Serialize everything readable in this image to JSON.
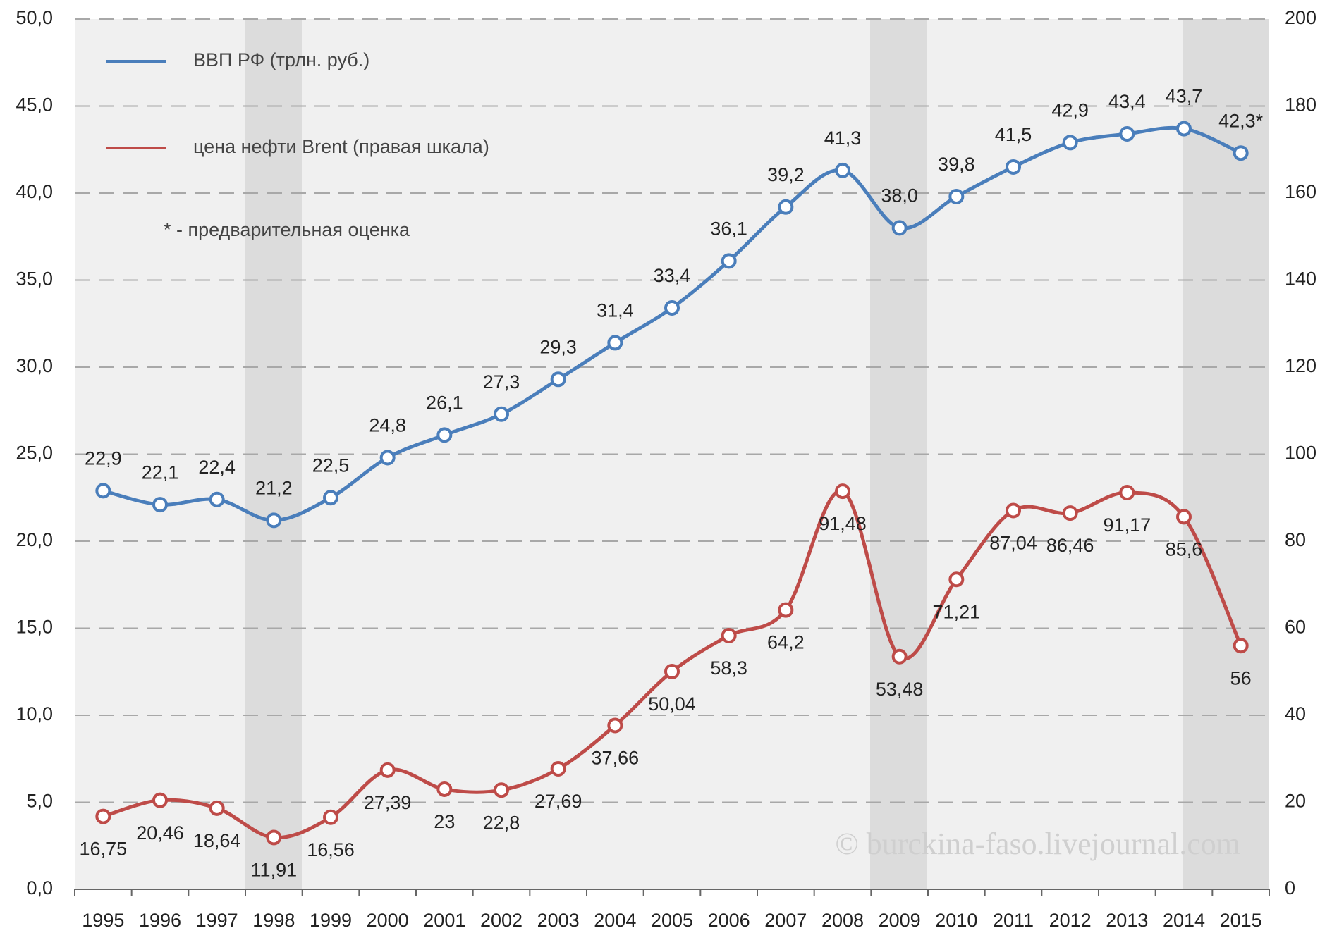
{
  "chart_data": {
    "type": "line",
    "categories": [
      "1995",
      "1996",
      "1997",
      "1998",
      "1999",
      "2000",
      "2001",
      "2002",
      "2003",
      "2004",
      "2005",
      "2006",
      "2007",
      "2008",
      "2009",
      "2010",
      "2011",
      "2012",
      "2013",
      "2014",
      "2015"
    ],
    "series": [
      {
        "name": "ВВП РФ (трлн. руб.)",
        "color": "#4a7ebb",
        "values": [
          22.9,
          22.1,
          22.4,
          21.2,
          22.5,
          24.8,
          26.1,
          27.3,
          29.3,
          31.4,
          33.4,
          36.1,
          39.2,
          41.3,
          38.0,
          39.8,
          41.5,
          42.9,
          43.4,
          43.7,
          42.3
        ],
        "value_labels": [
          "22,9",
          "22,1",
          "22,4",
          "21,2",
          "22,5",
          "24,8",
          "26,1",
          "27,3",
          "29,3",
          "31,4",
          "33,4",
          "36,1",
          "39,2",
          "41,3",
          "38,0",
          "39,8",
          "41,5",
          "42,9",
          "43,4",
          "43,7",
          "42,3*"
        ]
      },
      {
        "name": "цена нефти Brent (правая шкала)",
        "color": "#be4b48",
        "axis": "y2",
        "values": [
          16.75,
          20.46,
          18.64,
          11.91,
          16.56,
          27.39,
          23,
          22.8,
          27.69,
          37.66,
          50.04,
          58.3,
          64.2,
          91.48,
          53.48,
          71.21,
          87.04,
          86.46,
          91.17,
          85.6,
          56
        ],
        "value_labels": [
          "16,75",
          "20,46",
          "18,64",
          "11,91",
          "16,56",
          "27,39",
          "23",
          "22,8",
          "27,69",
          "37,66",
          "50,04",
          "58,3",
          "64,2",
          "91,48",
          "53,48",
          "71,21",
          "87,04",
          "86,46",
          "91,17",
          "85,6",
          "56"
        ]
      }
    ],
    "ylim": [
      0,
      50
    ],
    "yticks": [
      {
        "value": 0,
        "label": "0,0"
      },
      {
        "value": 5,
        "label": "5,0"
      },
      {
        "value": 10,
        "label": "10,0"
      },
      {
        "value": 15,
        "label": "15,0"
      },
      {
        "value": 20,
        "label": "20,0"
      },
      {
        "value": 25,
        "label": "25,0"
      },
      {
        "value": 30,
        "label": "30,0"
      },
      {
        "value": 35,
        "label": "35,0"
      },
      {
        "value": 40,
        "label": "40,0"
      },
      {
        "value": 45,
        "label": "45,0"
      },
      {
        "value": 50,
        "label": "50,0"
      }
    ],
    "y2lim": [
      0,
      200
    ],
    "y2ticks": [
      0,
      20,
      40,
      60,
      80,
      100,
      120,
      140,
      160,
      180,
      200
    ],
    "grid": true,
    "legend": "top-left",
    "note": "* - предварительная оценка",
    "watermark": "© burckina-faso.livejournal.com"
  }
}
